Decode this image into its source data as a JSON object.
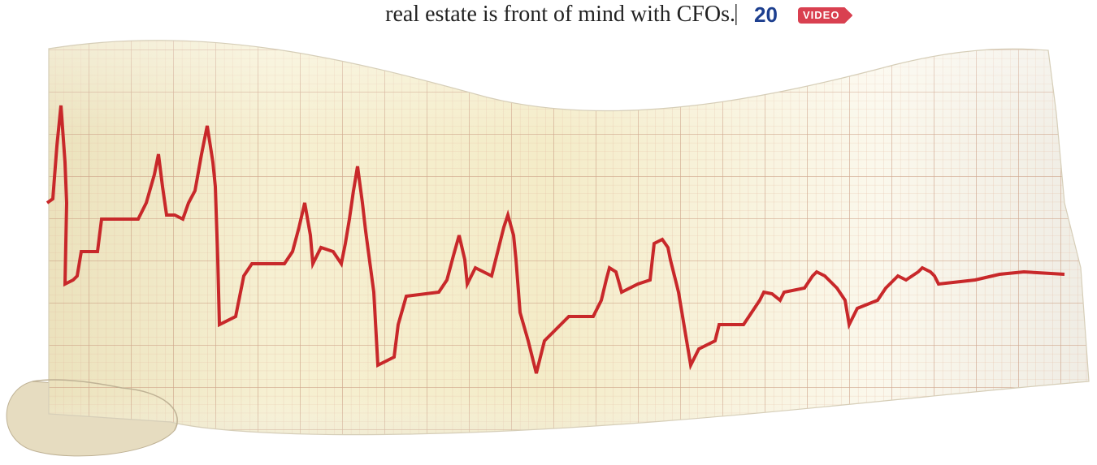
{
  "header": {
    "text": "real estate is front of mind with CFOs.",
    "separator": "|",
    "page_number": 20,
    "badge": "VIDEO"
  }
}
